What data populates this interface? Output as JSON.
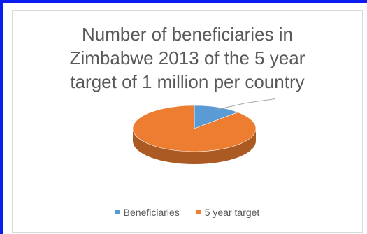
{
  "chart_data": {
    "type": "pie",
    "title_lines": [
      "Number of beneficiaries in",
      "Zimbabwe  2013 of  the 5 year",
      "target of 1 million per country"
    ],
    "categories": [
      "Beneficiaries",
      "5 year target"
    ],
    "values": [
      125000,
      875000
    ],
    "colors": [
      "#5b9bd5",
      "#ed7d31"
    ],
    "style": "3d",
    "legend_position": "bottom"
  }
}
